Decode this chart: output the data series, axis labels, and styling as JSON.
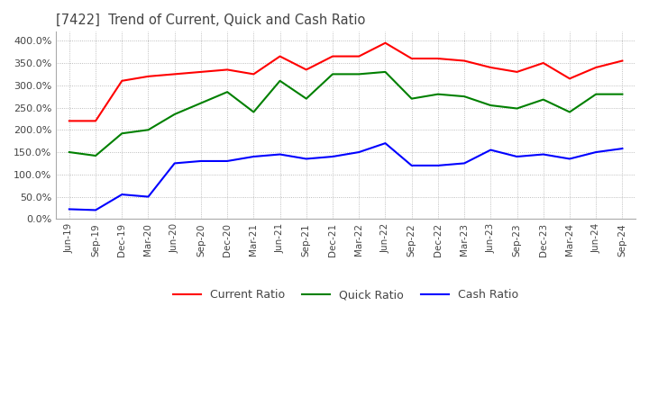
{
  "title": "[7422]  Trend of Current, Quick and Cash Ratio",
  "x_labels": [
    "Jun-19",
    "Sep-19",
    "Dec-19",
    "Mar-20",
    "Jun-20",
    "Sep-20",
    "Dec-20",
    "Mar-21",
    "Jun-21",
    "Sep-21",
    "Dec-21",
    "Mar-22",
    "Jun-22",
    "Sep-22",
    "Dec-22",
    "Mar-23",
    "Jun-23",
    "Sep-23",
    "Dec-23",
    "Mar-24",
    "Jun-24",
    "Sep-24"
  ],
  "current_ratio": [
    220,
    220,
    310,
    320,
    325,
    330,
    335,
    325,
    365,
    335,
    365,
    365,
    395,
    360,
    360,
    355,
    340,
    330,
    350,
    315,
    340,
    355
  ],
  "quick_ratio": [
    150,
    142,
    192,
    200,
    235,
    260,
    285,
    240,
    310,
    270,
    325,
    325,
    330,
    270,
    280,
    275,
    255,
    248,
    268,
    240,
    280,
    280
  ],
  "cash_ratio": [
    22,
    20,
    55,
    50,
    125,
    130,
    130,
    140,
    145,
    135,
    140,
    150,
    170,
    120,
    120,
    125,
    155,
    140,
    145,
    135,
    150,
    158
  ],
  "current_color": "#ff0000",
  "quick_color": "#008000",
  "cash_color": "#0000ff",
  "background_color": "#ffffff",
  "plot_bg_color": "#ffffff",
  "grid_color": "#aaaaaa",
  "ylim": [
    0,
    420
  ],
  "yticks": [
    0,
    50,
    100,
    150,
    200,
    250,
    300,
    350,
    400
  ]
}
